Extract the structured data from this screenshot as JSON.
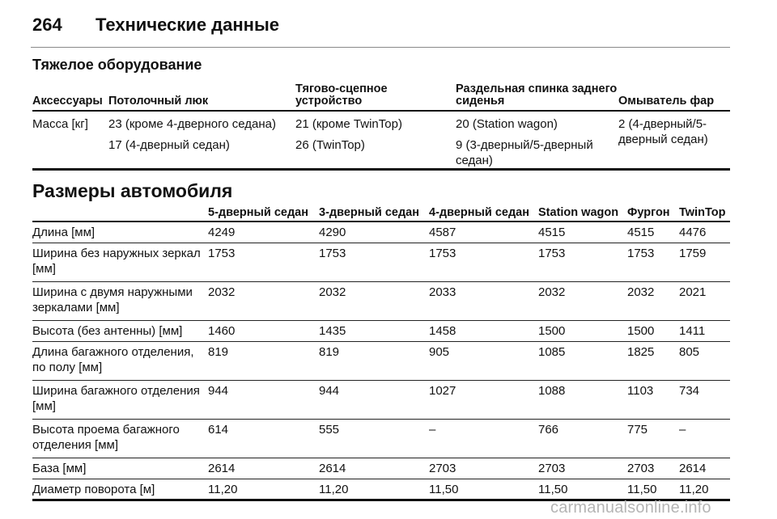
{
  "header": {
    "page_number": "264",
    "title": "Технические данные"
  },
  "equipment": {
    "title": "Тяжелое оборудование",
    "columns": [
      "Аксессуары",
      "Потолочный люк",
      "Тягово-сцепное устройство",
      "Раздельная спинка заднего сиденья",
      "Омыватель фар"
    ],
    "row": {
      "label": "Масса [кг]",
      "sunroof": [
        "23 (кроме 4-дверного седана)",
        "17 (4-дверный седан)"
      ],
      "towbar": [
        "21 (кроме TwinTop)",
        "26 (TwinTop)"
      ],
      "split_seat": [
        "20 (Station wagon)",
        "9 (3-дверный/5-дверный седан)"
      ],
      "headlamp_washer": [
        "2 (4-дверный/5-дверный седан)"
      ]
    }
  },
  "dimensions": {
    "title": "Размеры автомобиля",
    "columns": [
      "",
      "5-дверный седан",
      "3-дверный седан",
      "4-дверный седан",
      "Station wagon",
      "Фургон",
      "TwinTop"
    ],
    "rows": [
      {
        "label": "Длина [мм]",
        "values": [
          "4249",
          "4290",
          "4587",
          "4515",
          "4515",
          "4476"
        ]
      },
      {
        "label": "Ширина без наружных зеркал [мм]",
        "values": [
          "1753",
          "1753",
          "1753",
          "1753",
          "1753",
          "1759"
        ]
      },
      {
        "label": "Ширина с двумя наружными зеркалами [мм]",
        "values": [
          "2032",
          "2032",
          "2033",
          "2032",
          "2032",
          "2021"
        ]
      },
      {
        "label": "Высота (без антенны) [мм]",
        "values": [
          "1460",
          "1435",
          "1458",
          "1500",
          "1500",
          "1411"
        ]
      },
      {
        "label": "Длина багажного отделения, по полу [мм]",
        "values": [
          "819",
          "819",
          "905",
          "1085",
          "1825",
          "805"
        ]
      },
      {
        "label": "Ширина багажного отделения [мм]",
        "values": [
          "944",
          "944",
          "1027",
          "1088",
          "1103",
          "734"
        ]
      },
      {
        "label": "Высота проема багажного отделения [мм]",
        "values": [
          "614",
          "555",
          "–",
          "766",
          "775",
          "–"
        ]
      },
      {
        "label": "База [мм]",
        "values": [
          "2614",
          "2614",
          "2703",
          "2703",
          "2703",
          "2614"
        ]
      },
      {
        "label": "Диаметр поворота [м]",
        "values": [
          "11,20",
          "11,20",
          "11,50",
          "11,50",
          "11,50",
          "11,20"
        ]
      }
    ]
  },
  "watermark": "carmanualsonline.info"
}
